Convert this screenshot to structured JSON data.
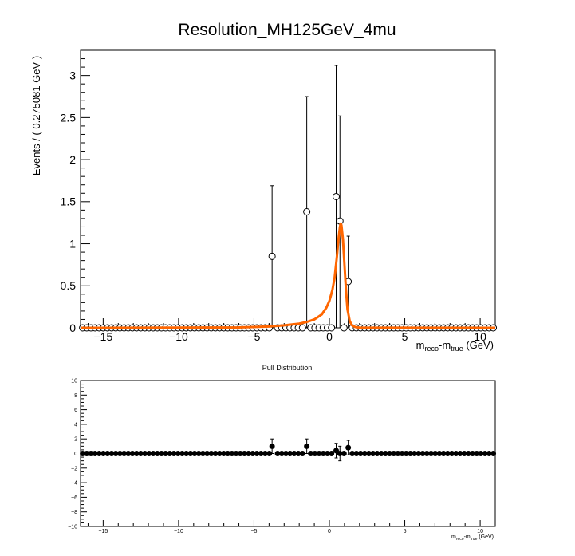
{
  "chart_data": [
    {
      "type": "scatter",
      "title": "Resolution_MH125GeV_4mu",
      "xlabel": {
        "base": "m",
        "sub1": "reco",
        "mid": "-m",
        "sub2": "true",
        "unit": " (GeV)"
      },
      "ylabel": "Events / ( 0.275081 GeV )",
      "xlim": [
        -16.5,
        11.0
      ],
      "ylim": [
        0,
        3.3
      ],
      "x_ticks": [
        -15,
        -10,
        -5,
        0,
        5,
        10
      ],
      "y_ticks": [
        0,
        0.5,
        1,
        1.5,
        2,
        2.5,
        3
      ],
      "grid": false,
      "series": [
        {
          "kind": "data_points",
          "bin_start": -16.5,
          "bin_width": 0.275081,
          "n_bins": 100,
          "nonzero": [
            {
              "x": -3.8,
              "y": 0.85,
              "err_low": 0.85,
              "err_high": 0.84
            },
            {
              "x": -1.5,
              "y": 1.38,
              "err_low": 1.38,
              "err_high": 1.37
            },
            {
              "x": 0.45,
              "y": 1.56,
              "err_low": 1.56,
              "err_high": 1.56
            },
            {
              "x": 0.7,
              "y": 1.27,
              "err_low": 1.27,
              "err_high": 1.25
            },
            {
              "x": 1.25,
              "y": 0.55,
              "err_low": 0.55,
              "err_high": 0.54
            }
          ]
        },
        {
          "kind": "fit_curve",
          "color": "#ff6600",
          "x": [
            -16.5,
            -10,
            -6,
            -4,
            -3,
            -2,
            -1.5,
            -1,
            -0.5,
            -0.2,
            0,
            0.2,
            0.35,
            0.5,
            0.6,
            0.7,
            0.75,
            0.8,
            0.9,
            1.0,
            1.1,
            1.2,
            1.35,
            1.5,
            1.7,
            2.0,
            11.0
          ],
          "y": [
            0,
            0.002,
            0.005,
            0.015,
            0.03,
            0.05,
            0.07,
            0.1,
            0.16,
            0.24,
            0.32,
            0.45,
            0.6,
            0.85,
            1.05,
            1.2,
            1.24,
            1.22,
            1.05,
            0.75,
            0.45,
            0.22,
            0.08,
            0.03,
            0.01,
            0.002,
            0
          ]
        }
      ]
    },
    {
      "type": "scatter",
      "title": "Pull Distribution",
      "xlabel": {
        "base": "m",
        "sub1": "reco",
        "mid": "-m",
        "sub2": "true",
        "unit": " (GeV)"
      },
      "ylabel": "",
      "xlim": [
        -16.5,
        11.0
      ],
      "ylim": [
        -10,
        10
      ],
      "x_ticks": [
        -15,
        -10,
        -5,
        0,
        5,
        10
      ],
      "y_ticks": [
        -10,
        -8,
        -6,
        -4,
        -2,
        0,
        2,
        4,
        6,
        8,
        10
      ],
      "grid": false,
      "series": [
        {
          "kind": "pull_points",
          "bin_start": -16.5,
          "bin_width": 0.275081,
          "n_bins": 100,
          "nonzero": [
            {
              "x": -3.8,
              "y": 1.0,
              "err": 1.0
            },
            {
              "x": -1.5,
              "y": 1.0,
              "err": 1.0
            },
            {
              "x": 0.45,
              "y": 0.4,
              "err": 1.0
            },
            {
              "x": 0.7,
              "y": 0.0,
              "err": 1.0
            },
            {
              "x": 1.25,
              "y": 0.8,
              "err": 1.0
            }
          ]
        }
      ]
    }
  ]
}
